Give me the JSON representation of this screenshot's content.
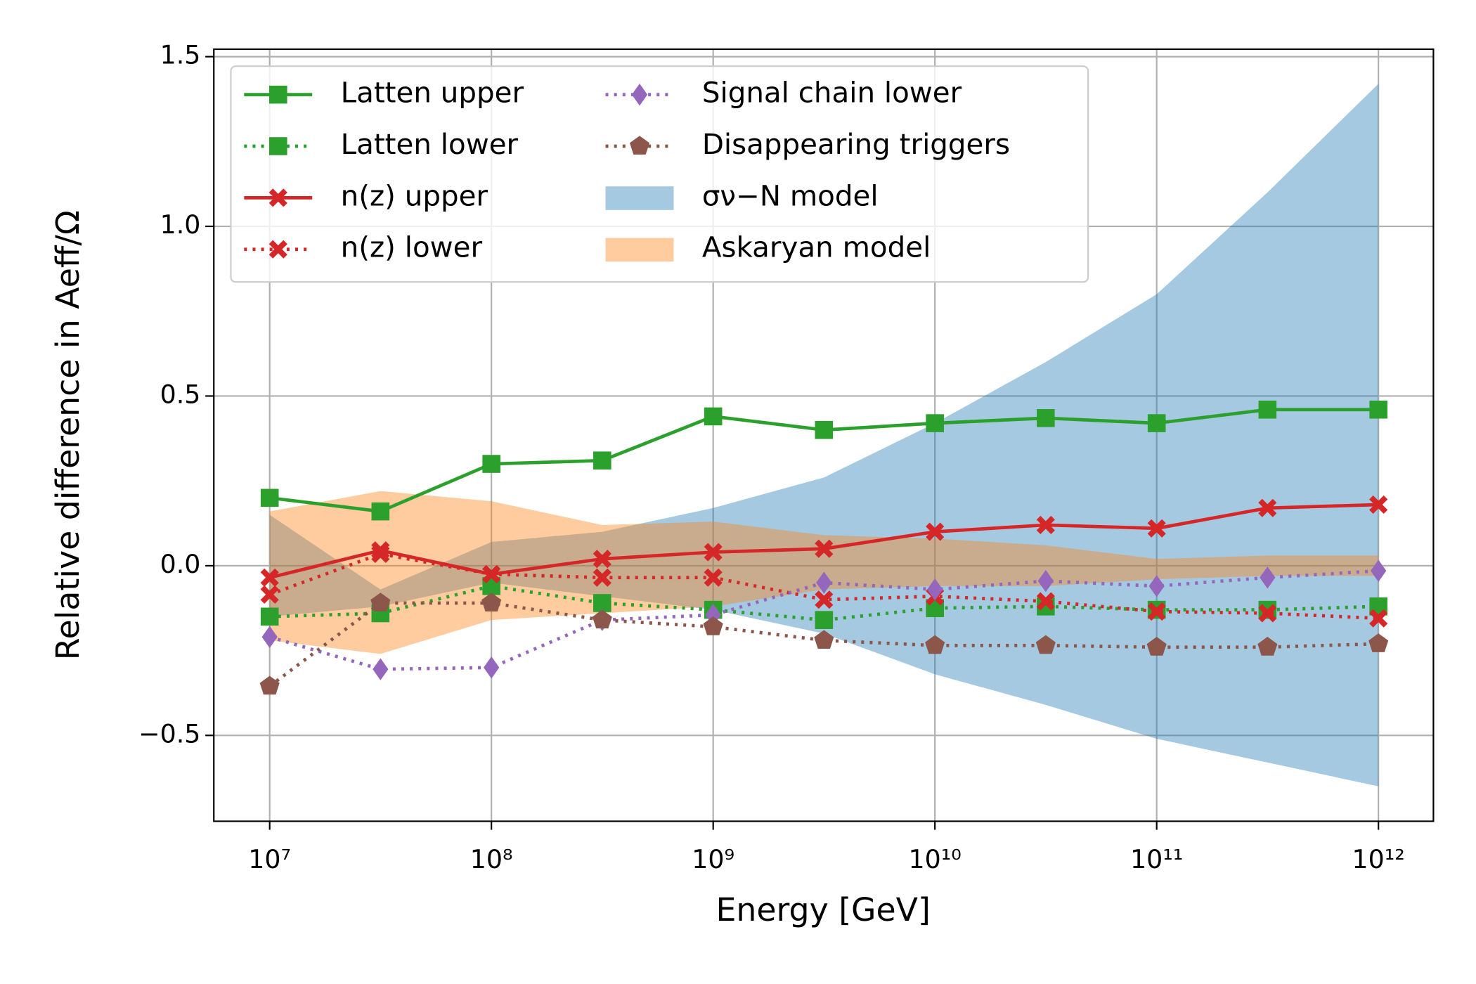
{
  "chart_data": {
    "type": "line",
    "xlabel": "Energy [GeV]",
    "ylabel": "Relative difference in Aeff/Ω",
    "xscale": "log",
    "xlim": [
      5600000,
      1770000000000
    ],
    "ylim": [
      -0.753,
      1.522
    ],
    "xticks": [
      {
        "value": 10000000,
        "label": "10⁷"
      },
      {
        "value": 100000000,
        "label": "10⁸"
      },
      {
        "value": 1000000000,
        "label": "10⁹"
      },
      {
        "value": 10000000000,
        "label": "10¹⁰"
      },
      {
        "value": 100000000000,
        "label": "10¹¹"
      },
      {
        "value": 1000000000000,
        "label": "10¹²"
      }
    ],
    "yticks": [
      {
        "value": -0.5,
        "label": "−0.5"
      },
      {
        "value": 0,
        "label": "0.0"
      },
      0.5,
      {
        "value": 1,
        "label": "1.0"
      },
      1.5
    ],
    "grid": true,
    "legend": "upper left",
    "x": [
      10000000,
      31600000,
      100000000,
      316000000,
      1000000000,
      3160000000,
      10000000000,
      31600000000,
      100000000000,
      316000000000,
      1000000000000
    ],
    "series": [
      {
        "name": "Latten upper",
        "color": "#2ca02c",
        "linestyle": "solid",
        "marker": "square",
        "values": [
          0.2,
          0.16,
          0.3,
          0.31,
          0.44,
          0.4,
          0.42,
          0.435,
          0.42,
          0.46,
          0.46
        ]
      },
      {
        "name": "Latten lower",
        "color": "#2ca02c",
        "linestyle": "dotted",
        "marker": "square",
        "values": [
          -0.15,
          -0.14,
          -0.06,
          -0.11,
          -0.13,
          -0.16,
          -0.125,
          -0.12,
          -0.13,
          -0.13,
          -0.12
        ]
      },
      {
        "name": "n(z) upper",
        "color": "#d62728",
        "linestyle": "solid",
        "marker": "x",
        "values": [
          -0.035,
          0.045,
          -0.025,
          0.02,
          0.04,
          0.05,
          0.1,
          0.12,
          0.11,
          0.17,
          0.18
        ]
      },
      {
        "name": "n(z) lower",
        "color": "#d62728",
        "linestyle": "dotted",
        "marker": "x",
        "values": [
          -0.085,
          0.035,
          -0.025,
          -0.035,
          -0.035,
          -0.1,
          -0.09,
          -0.105,
          -0.135,
          -0.14,
          -0.155
        ]
      },
      {
        "name": "Signal chain lower",
        "color": "#9467bd",
        "linestyle": "dotted",
        "marker": "diamond",
        "values": [
          -0.21,
          -0.305,
          -0.3,
          -0.16,
          -0.145,
          -0.05,
          -0.07,
          -0.045,
          -0.06,
          -0.035,
          -0.015
        ]
      },
      {
        "name": "Disappearing triggers",
        "color": "#8c564b",
        "linestyle": "dotted",
        "marker": "pentagon",
        "values": [
          -0.355,
          -0.11,
          -0.11,
          -0.16,
          -0.18,
          -0.22,
          -0.235,
          -0.235,
          -0.24,
          -0.24,
          -0.23
        ]
      }
    ],
    "bands": [
      {
        "name": "σν−N model",
        "color": "#1f77b4",
        "alpha": 0.4,
        "upper": [
          0.15,
          -0.07,
          0.07,
          0.1,
          0.17,
          0.26,
          0.42,
          0.6,
          0.8,
          1.1,
          1.42
        ],
        "lower": [
          -0.15,
          -0.12,
          -0.05,
          -0.09,
          -0.13,
          -0.2,
          -0.32,
          -0.41,
          -0.51,
          -0.58,
          -0.65
        ]
      },
      {
        "name": "Askaryan model",
        "color": "#ff7f0e",
        "alpha": 0.4,
        "upper": [
          0.16,
          0.22,
          0.19,
          0.12,
          0.13,
          0.09,
          0.08,
          0.06,
          0.02,
          0.03,
          0.03
        ],
        "lower": [
          -0.22,
          -0.26,
          -0.16,
          -0.14,
          -0.12,
          -0.07,
          -0.06,
          -0.06,
          -0.04,
          -0.03,
          -0.03
        ]
      }
    ]
  }
}
